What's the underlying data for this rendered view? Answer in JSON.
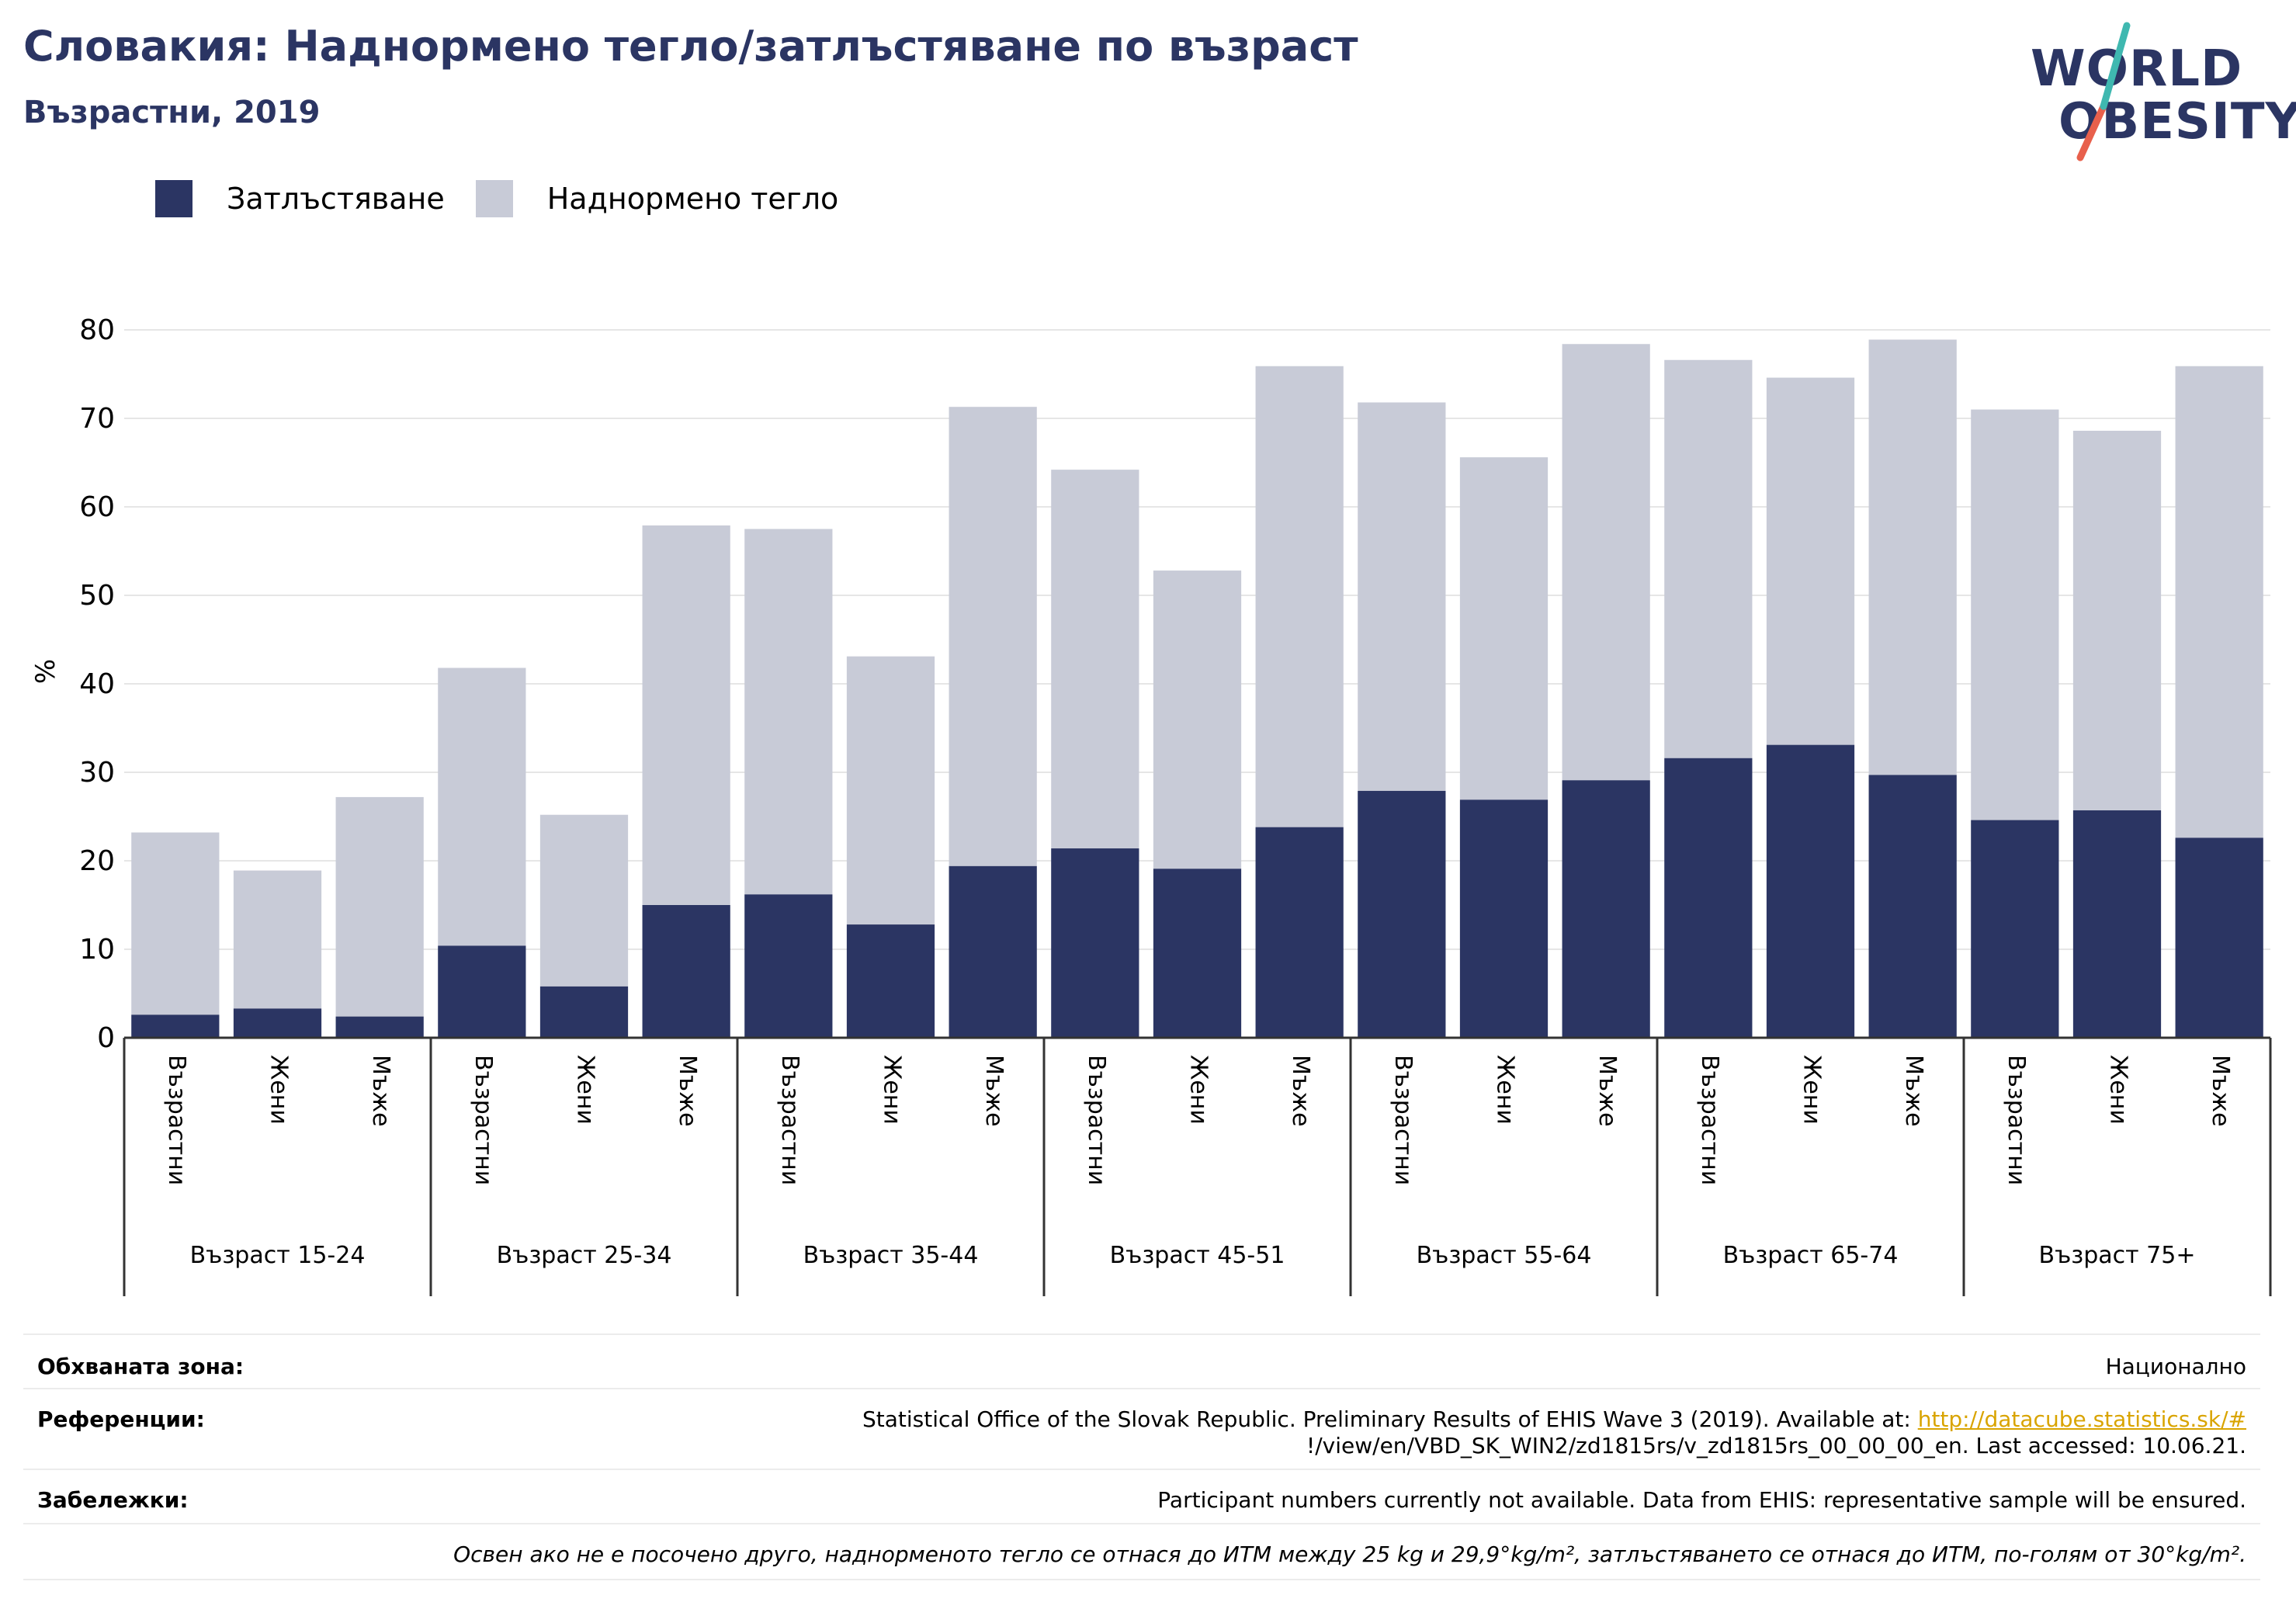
{
  "header": {
    "title": "Словакия: Наднормено тегло/затлъстяване по възраст",
    "subtitle": "Възрастни, 2019"
  },
  "logo": {
    "line1": "WORLD",
    "line2": "OBESITY"
  },
  "colors": {
    "obesity": "#2b3563",
    "overweight": "#c8cbd7",
    "title": "#2b3563",
    "accent_red": "#e8604c",
    "accent_teal": "#3fb8b0",
    "link": "#d9a400"
  },
  "legend": {
    "obesity": "Затлъстяване",
    "overweight": "Наднормено тегло"
  },
  "chart_data": {
    "type": "bar",
    "stacked": true,
    "ylabel": "%",
    "xlabel": "",
    "ylim": [
      0,
      80
    ],
    "yticks": [
      0,
      10,
      20,
      30,
      40,
      50,
      60,
      70,
      80
    ],
    "grid": true,
    "legend_position": "top-left",
    "groups": [
      "Възраст 15-24",
      "Възраст 25-34",
      "Възраст 35-44",
      "Възраст 45-51",
      "Възраст 55-64",
      "Възраст 65-74",
      "Възраст 75+"
    ],
    "subcategories": [
      "Възрастни",
      "Жени",
      "Мъже"
    ],
    "series": [
      {
        "name": "Затлъстяване",
        "values": [
          2.6,
          3.3,
          2.4,
          10.4,
          5.8,
          15.0,
          16.2,
          12.8,
          19.4,
          21.4,
          19.1,
          23.8,
          27.9,
          26.9,
          29.1,
          31.6,
          33.1,
          29.7,
          24.6,
          25.7,
          22.6
        ]
      },
      {
        "name": "Наднормено тегло",
        "values": [
          20.6,
          15.6,
          24.8,
          31.4,
          19.4,
          42.9,
          41.3,
          30.3,
          51.9,
          42.8,
          33.7,
          52.1,
          43.9,
          38.7,
          49.3,
          45.0,
          41.5,
          49.2,
          46.4,
          42.9,
          53.3
        ]
      }
    ]
  },
  "footer": {
    "coverage_label": "Обхваната зона:",
    "coverage_value": "Национално",
    "references_label": "Референции:",
    "references_text1": "Statistical Office of the Slovak Republic. Preliminary Results of EHIS Wave 3 (2019). Available at: ",
    "references_link": "http://datacube.statistics.sk/#",
    "references_text2": "!/view/en/VBD_SK_WIN2/zd1815rs/v_zd1815rs_00_00_00_en. Last accessed: 10.06.21.",
    "notes_label": "Забележки:",
    "notes_value": "Participant numbers currently not available. Data from EHIS: representative sample will be ensured.",
    "definition": "Освен ако не е посочено друго, наднорменото тегло се отнася до ИТМ между 25 kg и 29,9°kg/m², затлъстяването се отнася до ИТМ, по-голям от 30°kg/m²."
  }
}
